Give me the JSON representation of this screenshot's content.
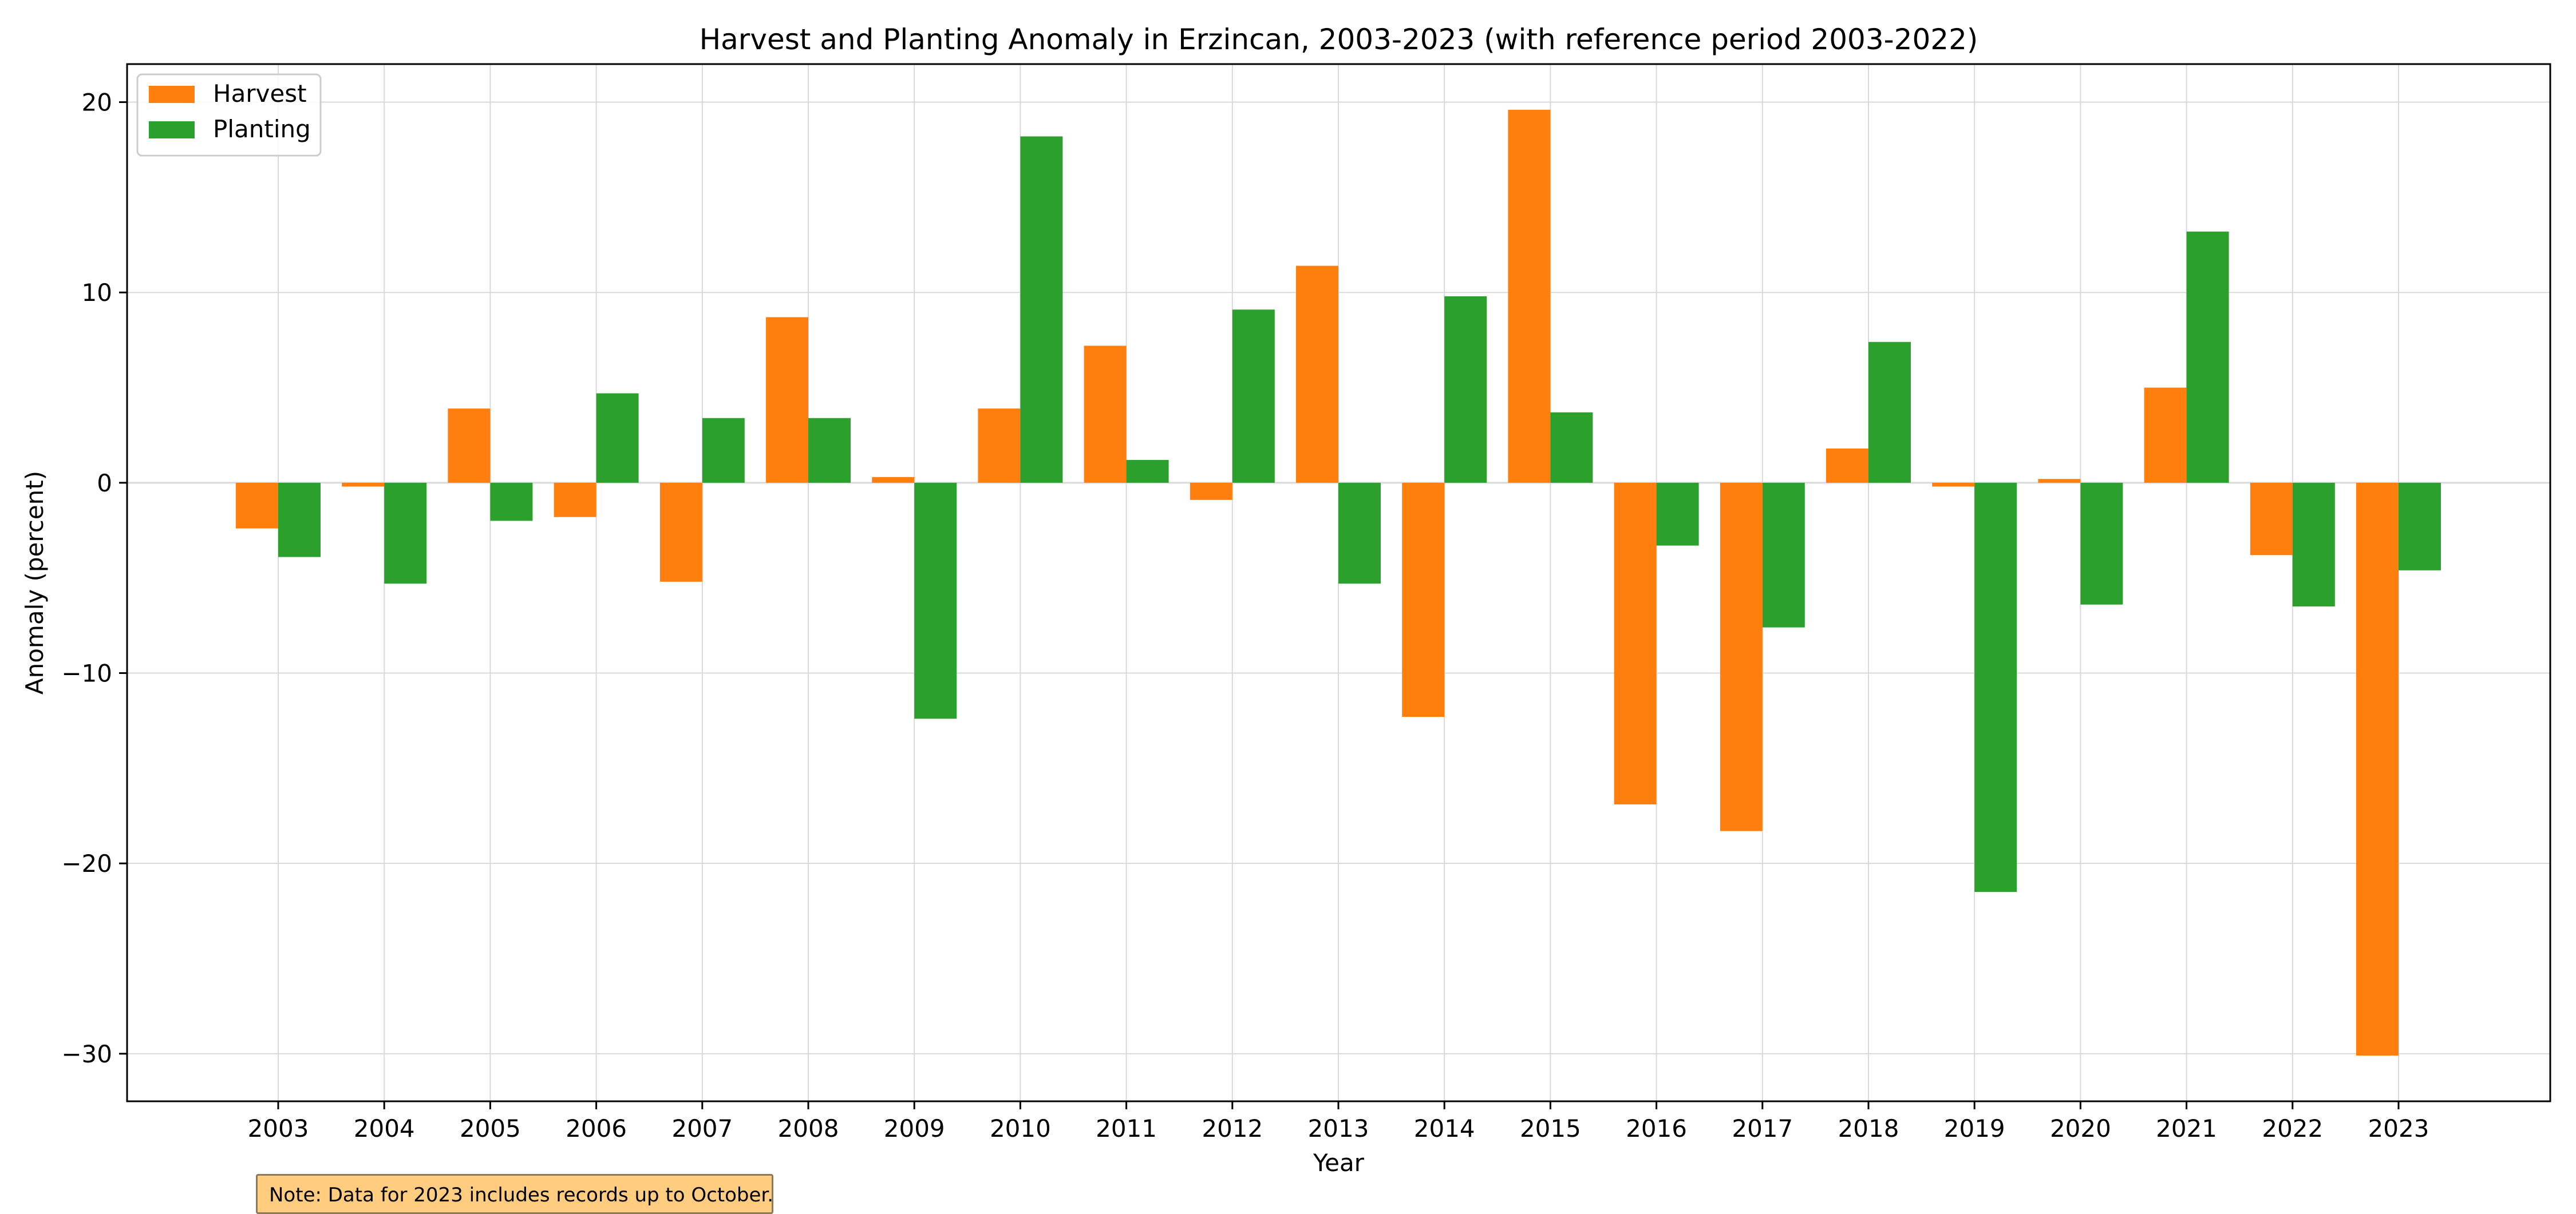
{
  "chart_data": {
    "type": "bar",
    "title": "Harvest and Planting Anomaly in Erzincan, 2003-2023 (with reference period 2003-2022)",
    "xlabel": "Year",
    "ylabel": "Anomaly (percent)",
    "categories": [
      "2003",
      "2004",
      "2005",
      "2006",
      "2007",
      "2008",
      "2009",
      "2010",
      "2011",
      "2012",
      "2013",
      "2014",
      "2015",
      "2016",
      "2017",
      "2018",
      "2019",
      "2020",
      "2021",
      "2022",
      "2023"
    ],
    "series": [
      {
        "name": "Harvest",
        "color": "#ff7f0e",
        "values": [
          -2.4,
          -0.2,
          3.9,
          -1.8,
          -5.2,
          8.7,
          0.3,
          3.9,
          7.2,
          -0.9,
          11.4,
          -12.3,
          19.6,
          -16.9,
          -18.3,
          1.8,
          -0.2,
          0.2,
          5.0,
          -3.8,
          -30.1
        ]
      },
      {
        "name": "Planting",
        "color": "#2ca02c",
        "values": [
          -3.9,
          -5.3,
          -2.0,
          4.7,
          3.4,
          3.4,
          -12.4,
          18.2,
          1.2,
          9.1,
          -5.3,
          9.8,
          3.7,
          -3.3,
          -7.6,
          7.4,
          -21.5,
          -6.4,
          13.2,
          -6.5,
          -4.6
        ]
      }
    ],
    "ylim": [
      -32.5,
      22
    ],
    "yticks": [
      -30,
      -20,
      -10,
      0,
      10,
      20
    ],
    "grid": true,
    "legend": "top-left"
  },
  "note": "Note: Data for 2023 includes records up to October."
}
